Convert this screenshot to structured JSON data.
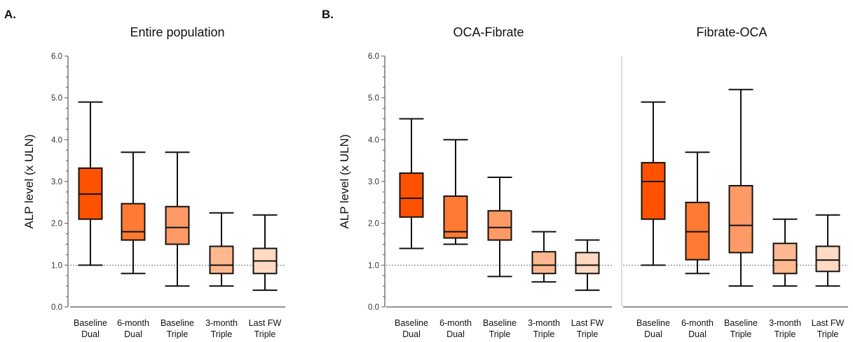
{
  "panel_letters": [
    "A.",
    "B."
  ],
  "chart_data": [
    {
      "type": "boxplot",
      "title": "Entire population",
      "ylabel": "ALP level (x ULN)",
      "ylim": [
        0,
        6
      ],
      "yticks": [
        "0.0",
        "1.0",
        "2.0",
        "3.0",
        "4.0",
        "5.0",
        "6.0"
      ],
      "reference_line": 1.0,
      "categories": [
        [
          "Baseline",
          "Dual"
        ],
        [
          "6-month",
          "Dual"
        ],
        [
          "Baseline",
          "Triple"
        ],
        [
          "3-month",
          "Triple"
        ],
        [
          "Last FW",
          "Triple"
        ]
      ],
      "boxes": [
        {
          "min": 1.0,
          "q1": 2.1,
          "median": 2.7,
          "q3": 3.32,
          "max": 4.9,
          "color": "#ff5200"
        },
        {
          "min": 0.8,
          "q1": 1.6,
          "median": 1.8,
          "q3": 2.47,
          "max": 3.7,
          "color": "#ff7a33"
        },
        {
          "min": 0.5,
          "q1": 1.5,
          "median": 1.9,
          "q3": 2.4,
          "max": 3.7,
          "color": "#ff9a66"
        },
        {
          "min": 0.5,
          "q1": 0.8,
          "median": 1.0,
          "q3": 1.45,
          "max": 2.25,
          "color": "#ffb88f"
        },
        {
          "min": 0.4,
          "q1": 0.8,
          "median": 1.1,
          "q3": 1.4,
          "max": 2.2,
          "color": "#ffd9c2"
        }
      ]
    },
    {
      "type": "boxplot",
      "title": "OCA-Fibrate",
      "ylabel": "ALP level (x ULN)",
      "ylim": [
        0,
        6
      ],
      "yticks": [
        "0.0",
        "1.0",
        "2.0",
        "3.0",
        "4.0",
        "5.0",
        "6.0"
      ],
      "reference_line": 1.0,
      "categories": [
        [
          "Baseline",
          "Dual"
        ],
        [
          "6-month",
          "Dual"
        ],
        [
          "Baseline",
          "Triple"
        ],
        [
          "3-month",
          "Triple"
        ],
        [
          "Last FW",
          "Triple"
        ]
      ],
      "boxes": [
        {
          "min": 1.4,
          "q1": 2.15,
          "median": 2.6,
          "q3": 3.2,
          "max": 4.5,
          "color": "#ff5200"
        },
        {
          "min": 1.5,
          "q1": 1.65,
          "median": 1.8,
          "q3": 2.65,
          "max": 4.0,
          "color": "#ff7a33"
        },
        {
          "min": 0.73,
          "q1": 1.6,
          "median": 1.9,
          "q3": 2.3,
          "max": 3.1,
          "color": "#ff9a66"
        },
        {
          "min": 0.6,
          "q1": 0.8,
          "median": 1.0,
          "q3": 1.32,
          "max": 1.8,
          "color": "#ffb88f"
        },
        {
          "min": 0.4,
          "q1": 0.8,
          "median": 1.0,
          "q3": 1.3,
          "max": 1.6,
          "color": "#ffd9c2"
        }
      ]
    },
    {
      "type": "boxplot",
      "title": "Fibrate-OCA",
      "ylim": [
        0,
        6
      ],
      "reference_line": 1.0,
      "categories": [
        [
          "Baseline",
          "Dual"
        ],
        [
          "6-month",
          "Dual"
        ],
        [
          "Baseline",
          "Triple"
        ],
        [
          "3-month",
          "Triple"
        ],
        [
          "Last FW",
          "Triple"
        ]
      ],
      "boxes": [
        {
          "min": 1.0,
          "q1": 2.1,
          "median": 3.0,
          "q3": 3.45,
          "max": 4.9,
          "color": "#ff5200"
        },
        {
          "min": 0.8,
          "q1": 1.13,
          "median": 1.8,
          "q3": 2.5,
          "max": 3.7,
          "color": "#ff7a33"
        },
        {
          "min": 0.5,
          "q1": 1.3,
          "median": 1.95,
          "q3": 2.9,
          "max": 5.2,
          "color": "#ff9a66"
        },
        {
          "min": 0.5,
          "q1": 0.8,
          "median": 1.12,
          "q3": 1.52,
          "max": 2.1,
          "color": "#ffb88f"
        },
        {
          "min": 0.5,
          "q1": 0.85,
          "median": 1.12,
          "q3": 1.45,
          "max": 2.2,
          "color": "#ffd9c2"
        }
      ]
    }
  ]
}
